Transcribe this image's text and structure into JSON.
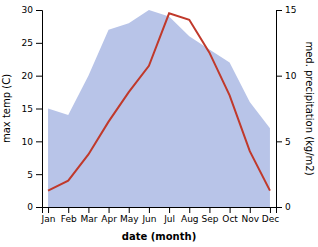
{
  "chart_data": {
    "type": "line",
    "categories": [
      "Jan",
      "Feb",
      "Mar",
      "Apr",
      "May",
      "Jun",
      "Jul",
      "Aug",
      "Sep",
      "Oct",
      "Nov",
      "Dec"
    ],
    "xlabel": "date (month)",
    "ylabel": "max temp (C)",
    "y2label": "med. precipitation (kg/m2)",
    "ylim": [
      0,
      30
    ],
    "yticks": [
      0,
      5,
      10,
      15,
      20,
      25,
      30
    ],
    "y2lim": [
      0,
      15
    ],
    "y2ticks": [
      0,
      5,
      10,
      15
    ],
    "grid": false,
    "series": [
      {
        "type": "area",
        "axis": "y2",
        "color": "#b8c4e8",
        "values": [
          7.5,
          7.0,
          10.0,
          13.5,
          14.0,
          15.0,
          14.5,
          13.0,
          12.0,
          11.0,
          8.0,
          6.0
        ]
      },
      {
        "type": "line",
        "color": "#c0392b",
        "values": [
          2.5,
          4.0,
          8.0,
          13.0,
          17.5,
          21.5,
          29.5,
          28.5,
          23.5,
          17.0,
          8.5,
          2.5
        ]
      }
    ]
  }
}
